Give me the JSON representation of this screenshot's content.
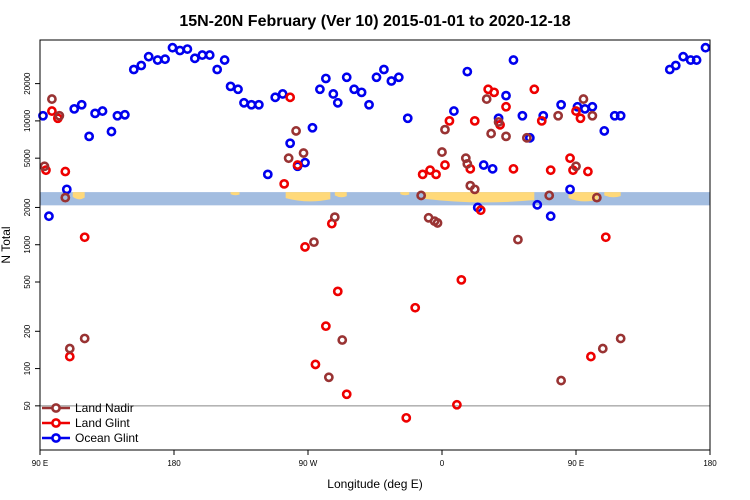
{
  "chart_data": {
    "type": "scatter",
    "title": "15N-20N February (Ver 10)   2015-01-01 to 2020-12-18",
    "xlabel": "Longitude (deg E)",
    "ylabel": "N Total",
    "x_ticks": [
      {
        "value": 0,
        "label": "90 E"
      },
      {
        "value": 90,
        "label": "180"
      },
      {
        "value": 180,
        "label": "90 W"
      },
      {
        "value": 270,
        "label": "0"
      },
      {
        "value": 360,
        "label": "90 E"
      },
      {
        "value": 450,
        "label": "180"
      }
    ],
    "y_ticks": [
      {
        "value": 50,
        "label": "50"
      },
      {
        "value": 100,
        "label": "100"
      },
      {
        "value": 200,
        "label": "200"
      },
      {
        "value": 500,
        "label": "500"
      },
      {
        "value": 1000,
        "label": "1000"
      },
      {
        "value": 2000,
        "label": "2000"
      },
      {
        "value": 5000,
        "label": "5000"
      },
      {
        "value": 10000,
        "label": "10000"
      },
      {
        "value": 20000,
        "label": "20000"
      }
    ],
    "xlim": [
      0,
      450
    ],
    "ylim_log": [
      22,
      45000
    ],
    "y_scale": "log",
    "reference_line_y": 50,
    "map_band_y": [
      2080,
      2660
    ],
    "colors": {
      "ocean": "#a3bde0",
      "land": "#ffd97a",
      "grid_line": "#888888"
    },
    "legend": {
      "position": "bottom-left",
      "entries": [
        {
          "name": "Land Nadir",
          "color": "#993333"
        },
        {
          "name": "Land Glint",
          "color": "#ee0000"
        },
        {
          "name": "Ocean Glint",
          "color": "#0000ee"
        }
      ]
    },
    "series": [
      {
        "name": "Ocean Glint",
        "color": "#0000ee",
        "points": [
          [
            2,
            11000
          ],
          [
            6,
            1700
          ],
          [
            18,
            2800
          ],
          [
            23,
            12500
          ],
          [
            28,
            13500
          ],
          [
            33,
            7500
          ],
          [
            37,
            11500
          ],
          [
            42,
            12000
          ],
          [
            48,
            8200
          ],
          [
            52,
            11000
          ],
          [
            57,
            11200
          ],
          [
            63,
            26000
          ],
          [
            68,
            28000
          ],
          [
            73,
            33000
          ],
          [
            79,
            31000
          ],
          [
            84,
            31500
          ],
          [
            89,
            39000
          ],
          [
            94,
            37000
          ],
          [
            99,
            38000
          ],
          [
            104,
            32000
          ],
          [
            109,
            34000
          ],
          [
            114,
            34000
          ],
          [
            119,
            26000
          ],
          [
            124,
            31000
          ],
          [
            128,
            19000
          ],
          [
            133,
            18000
          ],
          [
            137,
            14000
          ],
          [
            142,
            13500
          ],
          [
            147,
            13500
          ],
          [
            153,
            3700
          ],
          [
            158,
            15500
          ],
          [
            163,
            16500
          ],
          [
            168,
            6600
          ],
          [
            173,
            4300
          ],
          [
            178,
            4600
          ],
          [
            183,
            8800
          ],
          [
            188,
            18000
          ],
          [
            192,
            22000
          ],
          [
            197,
            16500
          ],
          [
            200,
            14000
          ],
          [
            206,
            22500
          ],
          [
            211,
            18000
          ],
          [
            216,
            17000
          ],
          [
            221,
            13500
          ],
          [
            226,
            22500
          ],
          [
            231,
            26000
          ],
          [
            236,
            21000
          ],
          [
            241,
            22500
          ],
          [
            247,
            10500
          ],
          [
            278,
            12000
          ],
          [
            287,
            25000
          ],
          [
            294,
            2000
          ],
          [
            298,
            4400
          ],
          [
            304,
            4100
          ],
          [
            308,
            10500
          ],
          [
            313,
            16000
          ],
          [
            318,
            31000
          ],
          [
            324,
            11000
          ],
          [
            329,
            7300
          ],
          [
            334,
            2100
          ],
          [
            338,
            11000
          ],
          [
            343,
            1700
          ],
          [
            350,
            13500
          ],
          [
            356,
            2800
          ],
          [
            361,
            13000
          ],
          [
            366,
            12500
          ],
          [
            371,
            13000
          ],
          [
            379,
            8300
          ],
          [
            386,
            11000
          ],
          [
            390,
            11000
          ],
          [
            423,
            26000
          ],
          [
            427,
            28000
          ],
          [
            432,
            33000
          ],
          [
            437,
            31000
          ],
          [
            441,
            31000
          ],
          [
            447,
            39000
          ]
        ]
      },
      {
        "name": "Land Glint",
        "color": "#ee0000",
        "points": [
          [
            4,
            4000
          ],
          [
            8,
            12000
          ],
          [
            12,
            10500
          ],
          [
            17,
            3900
          ],
          [
            20,
            125
          ],
          [
            30,
            1150
          ],
          [
            164,
            3100
          ],
          [
            168,
            15500
          ],
          [
            173,
            4400
          ],
          [
            178,
            960
          ],
          [
            185,
            108
          ],
          [
            192,
            220
          ],
          [
            196,
            1480
          ],
          [
            200,
            420
          ],
          [
            206,
            62
          ],
          [
            246,
            40
          ],
          [
            252,
            310
          ],
          [
            257,
            3700
          ],
          [
            262,
            4000
          ],
          [
            266,
            3700
          ],
          [
            272,
            4400
          ],
          [
            275,
            10000
          ],
          [
            280,
            51
          ],
          [
            283,
            520
          ],
          [
            289,
            4100
          ],
          [
            292,
            10000
          ],
          [
            296,
            1900
          ],
          [
            301,
            18000
          ],
          [
            305,
            17000
          ],
          [
            309,
            9300
          ],
          [
            313,
            13000
          ],
          [
            318,
            4100
          ],
          [
            332,
            18000
          ],
          [
            337,
            10000
          ],
          [
            343,
            4000
          ],
          [
            356,
            5000
          ],
          [
            358,
            4000
          ],
          [
            360,
            12000
          ],
          [
            363,
            10500
          ],
          [
            368,
            3900
          ],
          [
            370,
            125
          ],
          [
            380,
            1150
          ]
        ]
      },
      {
        "name": "Land Nadir",
        "color": "#993333",
        "points": [
          [
            3,
            4300
          ],
          [
            8,
            15000
          ],
          [
            13,
            11000
          ],
          [
            17,
            2400
          ],
          [
            20,
            145
          ],
          [
            30,
            175
          ],
          [
            167,
            5000
          ],
          [
            172,
            8300
          ],
          [
            177,
            5500
          ],
          [
            184,
            1050
          ],
          [
            194,
            85
          ],
          [
            198,
            1670
          ],
          [
            203,
            170
          ],
          [
            256,
            2500
          ],
          [
            261,
            1650
          ],
          [
            265,
            1550
          ],
          [
            267,
            1500
          ],
          [
            270,
            5600
          ],
          [
            272,
            8500
          ],
          [
            286,
            5000
          ],
          [
            287,
            4500
          ],
          [
            289,
            3000
          ],
          [
            292,
            2800
          ],
          [
            300,
            15000
          ],
          [
            303,
            7900
          ],
          [
            308,
            9800
          ],
          [
            313,
            7500
          ],
          [
            321,
            1100
          ],
          [
            327,
            7300
          ],
          [
            342,
            2500
          ],
          [
            348,
            11000
          ],
          [
            350,
            80
          ],
          [
            360,
            4300
          ],
          [
            365,
            15000
          ],
          [
            371,
            11000
          ],
          [
            374,
            2400
          ],
          [
            378,
            145
          ],
          [
            390,
            175
          ]
        ]
      }
    ]
  }
}
